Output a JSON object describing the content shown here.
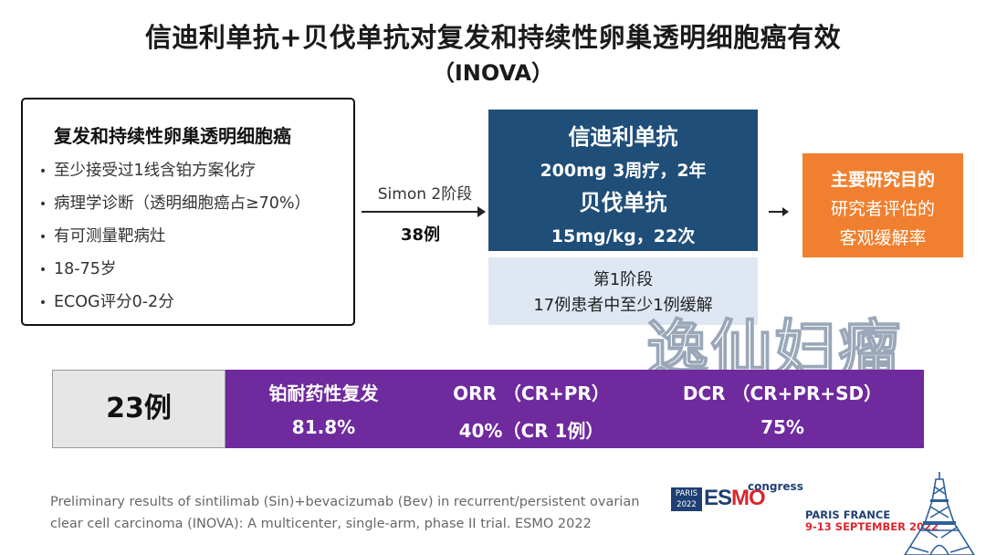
{
  "title": {
    "line1": "信迪利单抗+贝伐单抗对复发和持续性卵巢透明细胞癌有效",
    "line2": "（INOVA）"
  },
  "criteria": {
    "heading": "复发和持续性卵巢透明细胞癌",
    "bullet": "•",
    "items": [
      "至少接受过1线含铂方案化疗",
      "病理学诊断（透明细胞癌占≥70%）",
      "有可测量靶病灶",
      "18-75岁",
      "ECOG评分0-2分"
    ]
  },
  "design": {
    "stage_label": "Simon 2阶段",
    "enrolled": "38例"
  },
  "regimen": {
    "drug1": "信迪利单抗",
    "dose1": "200mg 3周疗，2年",
    "drug2": "贝伐单抗",
    "dose2": "15mg/kg，22次"
  },
  "phase1": {
    "title": "第1阶段",
    "criterion": "17例患者中至少1例缓解"
  },
  "primary_endpoint": {
    "label": "主要研究目的",
    "line1": "研究者评估的",
    "line2": "客观缓解率"
  },
  "watermark": "逸仙妇瘤",
  "results": {
    "patients": "23例",
    "columns": [
      {
        "label": "铂耐药性复发",
        "value": "81.8%"
      },
      {
        "label": "ORR （CR+PR）",
        "value": "40%（CR 1例）"
      },
      {
        "label": "DCR （CR+PR+SD）",
        "value": "75%"
      }
    ]
  },
  "citation": {
    "line1": "Preliminary results of sintilimab (Sin)+bevacizumab (Bev) in recurrent/persistent ovarian",
    "line2": "clear cell carcinoma (INOVA): A multicenter, single-arm, phase II trial. ESMO 2022"
  },
  "conference": {
    "logo_city": "PARIS",
    "logo_year": "2022",
    "brand_es": "ES",
    "brand_mo": "MO",
    "congress": "congress",
    "venue_line1": "PARIS FRANCE",
    "venue_line2": "9-13 SEPTEMBER 2022"
  },
  "colors": {
    "regimen_bg": "#1f4e79",
    "phase_bg": "#dfe7f3",
    "endpoint_bg": "#f0802f",
    "results_band": "#6f2a9e",
    "results_count_bg": "#e6e6e6"
  }
}
